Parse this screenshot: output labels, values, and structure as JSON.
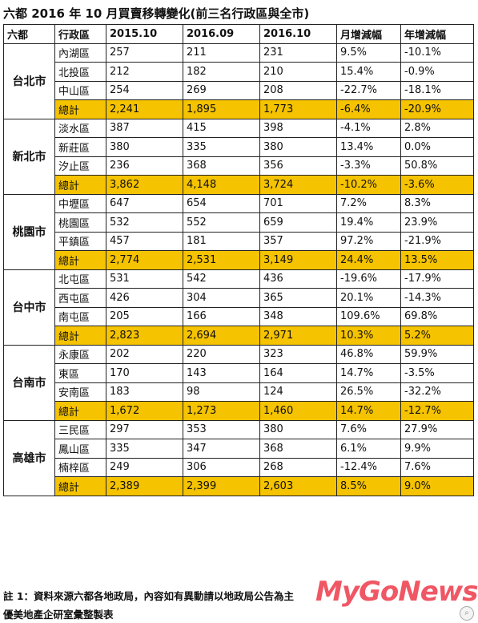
{
  "title": "六都 2016 年 10 月買賣移轉變化(前三名行政區與全市)",
  "headers": [
    "六都",
    "行政區",
    "2015.10",
    "2016.09",
    "2016.10",
    "月增減幅",
    "年增減幅"
  ],
  "cities": [
    {
      "name": "台北市",
      "rows": [
        [
          "內湖區",
          "257",
          "211",
          "231",
          "9.5%",
          "-10.1%"
        ],
        [
          "北投區",
          "212",
          "182",
          "210",
          "15.4%",
          "-0.9%"
        ],
        [
          "中山區",
          "254",
          "269",
          "208",
          "-22.7%",
          "-18.1%"
        ],
        [
          "總計",
          "2,241",
          "1,895",
          "1,773",
          "-6.4%",
          "-20.9%"
        ]
      ]
    },
    {
      "name": "新北市",
      "rows": [
        [
          "淡水區",
          "387",
          "415",
          "398",
          "-4.1%",
          "2.8%"
        ],
        [
          "新莊區",
          "380",
          "335",
          "380",
          "13.4%",
          "0.0%"
        ],
        [
          "汐止區",
          "236",
          "368",
          "356",
          "-3.3%",
          "50.8%"
        ],
        [
          "總計",
          "3,862",
          "4,148",
          "3,724",
          "-10.2%",
          "-3.6%"
        ]
      ]
    },
    {
      "name": "桃園市",
      "rows": [
        [
          "中壢區",
          "647",
          "654",
          "701",
          "7.2%",
          "8.3%"
        ],
        [
          "桃園區",
          "532",
          "552",
          "659",
          "19.4%",
          "23.9%"
        ],
        [
          "平鎮區",
          "457",
          "181",
          "357",
          "97.2%",
          "-21.9%"
        ],
        [
          "總計",
          "2,774",
          "2,531",
          "3,149",
          "24.4%",
          "13.5%"
        ]
      ]
    },
    {
      "name": "台中市",
      "rows": [
        [
          "北屯區",
          "531",
          "542",
          "436",
          "-19.6%",
          "-17.9%"
        ],
        [
          "西屯區",
          "426",
          "304",
          "365",
          "20.1%",
          "-14.3%"
        ],
        [
          "南屯區",
          "205",
          "166",
          "348",
          "109.6%",
          "69.8%"
        ],
        [
          "總計",
          "2,823",
          "2,694",
          "2,971",
          "10.3%",
          "5.2%"
        ]
      ]
    },
    {
      "name": "台南市",
      "rows": [
        [
          "永康區",
          "202",
          "220",
          "323",
          "46.8%",
          "59.9%"
        ],
        [
          "東區",
          "170",
          "143",
          "164",
          "14.7%",
          "-3.5%"
        ],
        [
          "安南區",
          "183",
          "98",
          "124",
          "26.5%",
          "-32.2%"
        ],
        [
          "總計",
          "1,672",
          "1,273",
          "1,460",
          "14.7%",
          "-12.7%"
        ]
      ]
    },
    {
      "name": "高雄市",
      "rows": [
        [
          "三民區",
          "297",
          "353",
          "380",
          "7.6%",
          "27.9%"
        ],
        [
          "鳳山區",
          "335",
          "347",
          "368",
          "6.1%",
          "9.9%"
        ],
        [
          "楠梓區",
          "249",
          "306",
          "268",
          "-12.4%",
          "7.6%"
        ],
        [
          "總計",
          "2,389",
          "2,399",
          "2,603",
          "8.5%",
          "9.0%"
        ]
      ]
    }
  ],
  "note": "註 1：資料來源六都各地政局，內容如有異動請以地政局公告為主",
  "maker": "優美地產企研室彙整製表",
  "watermark": "MyGoNews",
  "colors": {
    "total_row": "#f5c300",
    "watermark": "#ee3a4a"
  }
}
